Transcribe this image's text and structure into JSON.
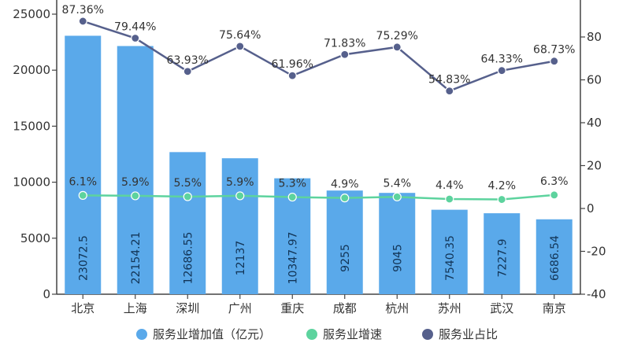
{
  "chart_data": {
    "type": "bar",
    "categories": [
      "北京",
      "上海",
      "深圳",
      "广州",
      "重庆",
      "成都",
      "杭州",
      "苏州",
      "武汉",
      "南京"
    ],
    "series": [
      {
        "name": "服务业增加值（亿元）",
        "type": "bar",
        "axis": "left",
        "color": "#5AA9EA",
        "values": [
          23072.5,
          22154.21,
          12686.55,
          12137,
          10347.97,
          9255,
          9045,
          7540.35,
          7227.9,
          6686.54
        ],
        "labels": [
          "23072.5",
          "22154.21",
          "12686.55",
          "12137",
          "10347.97",
          "9255",
          "9045",
          "7540.35",
          "7227.9",
          "6686.54"
        ]
      },
      {
        "name": "服务业增速",
        "type": "line",
        "axis": "right",
        "color": "#5DD39E",
        "values": [
          6.1,
          5.9,
          5.5,
          5.9,
          5.3,
          4.9,
          5.4,
          4.4,
          4.2,
          6.3
        ],
        "labels": [
          "6.1%",
          "5.9%",
          "5.5%",
          "5.9%",
          "5.3%",
          "4.9%",
          "5.4%",
          "4.4%",
          "4.2%",
          "6.3%"
        ]
      },
      {
        "name": "服务业占比",
        "type": "line",
        "axis": "right",
        "color": "#56608C",
        "values": [
          87.36,
          79.44,
          63.93,
          75.64,
          61.96,
          71.83,
          75.29,
          54.83,
          64.33,
          68.73
        ],
        "labels": [
          "87.36%",
          "79.44%",
          "63.93%",
          "75.64%",
          "61.96%",
          "71.83%",
          "75.29%",
          "54.83%",
          "64.33%",
          "68.73%"
        ]
      }
    ],
    "y_left": {
      "min": 0,
      "max": 25000,
      "ticks": [
        "0",
        "5000",
        "10000",
        "15000",
        "20000",
        "25000"
      ]
    },
    "y_right": {
      "min": -40,
      "max": 100,
      "ticks": [
        "-40",
        "-20",
        "0",
        "20",
        "40",
        "60",
        "80"
      ]
    },
    "legend_position": "bottom",
    "grid": false
  }
}
